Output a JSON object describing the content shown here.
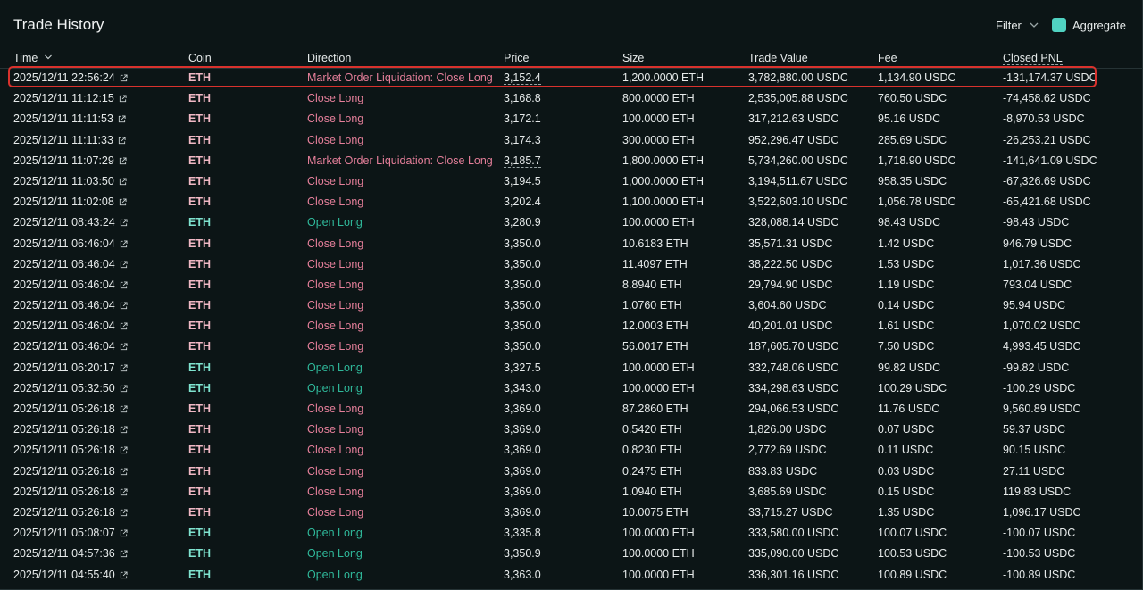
{
  "title": "Trade History",
  "controls": {
    "filter_label": "Filter",
    "aggregate_label": "Aggregate",
    "aggregate_checked": true
  },
  "columns": {
    "time": "Time",
    "coin": "Coin",
    "direction": "Direction",
    "price": "Price",
    "size": "Size",
    "trade_value": "Trade Value",
    "fee": "Fee",
    "closed_pnl": "Closed PNL"
  },
  "colors": {
    "close_long": "#e57f9a",
    "open_long": "#2fb89a",
    "coin_close": "#f0b8c4",
    "coin_open": "#7fe3cf",
    "highlight": "#d9322d"
  },
  "rows": [
    {
      "time": "2025/12/11 22:56:24",
      "coin": "ETH",
      "direction": "Market Order Liquidation: Close Long",
      "side": "close",
      "price": "3,152.4",
      "price_underlined": true,
      "size": "1,200.0000 ETH",
      "trade_value": "3,782,880.00 USDC",
      "fee": "1,134.90 USDC",
      "closed_pnl": "-131,174.37 USDC",
      "highlighted": true
    },
    {
      "time": "2025/12/11 11:12:15",
      "coin": "ETH",
      "direction": "Close Long",
      "side": "close",
      "price": "3,168.8",
      "size": "800.0000 ETH",
      "trade_value": "2,535,005.88 USDC",
      "fee": "760.50 USDC",
      "closed_pnl": "-74,458.62 USDC"
    },
    {
      "time": "2025/12/11 11:11:53",
      "coin": "ETH",
      "direction": "Close Long",
      "side": "close",
      "price": "3,172.1",
      "size": "100.0000 ETH",
      "trade_value": "317,212.63 USDC",
      "fee": "95.16 USDC",
      "closed_pnl": "-8,970.53 USDC"
    },
    {
      "time": "2025/12/11 11:11:33",
      "coin": "ETH",
      "direction": "Close Long",
      "side": "close",
      "price": "3,174.3",
      "size": "300.0000 ETH",
      "trade_value": "952,296.47 USDC",
      "fee": "285.69 USDC",
      "closed_pnl": "-26,253.21 USDC"
    },
    {
      "time": "2025/12/11 11:07:29",
      "coin": "ETH",
      "direction": "Market Order Liquidation: Close Long",
      "side": "close",
      "price": "3,185.7",
      "price_underlined": true,
      "size": "1,800.0000 ETH",
      "trade_value": "5,734,260.00 USDC",
      "fee": "1,718.90 USDC",
      "closed_pnl": "-141,641.09 USDC"
    },
    {
      "time": "2025/12/11 11:03:50",
      "coin": "ETH",
      "direction": "Close Long",
      "side": "close",
      "price": "3,194.5",
      "size": "1,000.0000 ETH",
      "trade_value": "3,194,511.67 USDC",
      "fee": "958.35 USDC",
      "closed_pnl": "-67,326.69 USDC"
    },
    {
      "time": "2025/12/11 11:02:08",
      "coin": "ETH",
      "direction": "Close Long",
      "side": "close",
      "price": "3,202.4",
      "size": "1,100.0000 ETH",
      "trade_value": "3,522,603.10 USDC",
      "fee": "1,056.78 USDC",
      "closed_pnl": "-65,421.68 USDC"
    },
    {
      "time": "2025/12/11 08:43:24",
      "coin": "ETH",
      "direction": "Open Long",
      "side": "open",
      "price": "3,280.9",
      "size": "100.0000 ETH",
      "trade_value": "328,088.14 USDC",
      "fee": "98.43 USDC",
      "closed_pnl": "-98.43 USDC"
    },
    {
      "time": "2025/12/11 06:46:04",
      "coin": "ETH",
      "direction": "Close Long",
      "side": "close",
      "price": "3,350.0",
      "size": "10.6183 ETH",
      "trade_value": "35,571.31 USDC",
      "fee": "1.42 USDC",
      "closed_pnl": "946.79 USDC"
    },
    {
      "time": "2025/12/11 06:46:04",
      "coin": "ETH",
      "direction": "Close Long",
      "side": "close",
      "price": "3,350.0",
      "size": "11.4097 ETH",
      "trade_value": "38,222.50 USDC",
      "fee": "1.53 USDC",
      "closed_pnl": "1,017.36 USDC"
    },
    {
      "time": "2025/12/11 06:46:04",
      "coin": "ETH",
      "direction": "Close Long",
      "side": "close",
      "price": "3,350.0",
      "size": "8.8940 ETH",
      "trade_value": "29,794.90 USDC",
      "fee": "1.19 USDC",
      "closed_pnl": "793.04 USDC"
    },
    {
      "time": "2025/12/11 06:46:04",
      "coin": "ETH",
      "direction": "Close Long",
      "side": "close",
      "price": "3,350.0",
      "size": "1.0760 ETH",
      "trade_value": "3,604.60 USDC",
      "fee": "0.14 USDC",
      "closed_pnl": "95.94 USDC"
    },
    {
      "time": "2025/12/11 06:46:04",
      "coin": "ETH",
      "direction": "Close Long",
      "side": "close",
      "price": "3,350.0",
      "size": "12.0003 ETH",
      "trade_value": "40,201.01 USDC",
      "fee": "1.61 USDC",
      "closed_pnl": "1,070.02 USDC"
    },
    {
      "time": "2025/12/11 06:46:04",
      "coin": "ETH",
      "direction": "Close Long",
      "side": "close",
      "price": "3,350.0",
      "size": "56.0017 ETH",
      "trade_value": "187,605.70 USDC",
      "fee": "7.50 USDC",
      "closed_pnl": "4,993.45 USDC"
    },
    {
      "time": "2025/12/11 06:20:17",
      "coin": "ETH",
      "direction": "Open Long",
      "side": "open",
      "price": "3,327.5",
      "size": "100.0000 ETH",
      "trade_value": "332,748.06 USDC",
      "fee": "99.82 USDC",
      "closed_pnl": "-99.82 USDC"
    },
    {
      "time": "2025/12/11 05:32:50",
      "coin": "ETH",
      "direction": "Open Long",
      "side": "open",
      "price": "3,343.0",
      "size": "100.0000 ETH",
      "trade_value": "334,298.63 USDC",
      "fee": "100.29 USDC",
      "closed_pnl": "-100.29 USDC"
    },
    {
      "time": "2025/12/11 05:26:18",
      "coin": "ETH",
      "direction": "Close Long",
      "side": "close",
      "price": "3,369.0",
      "size": "87.2860 ETH",
      "trade_value": "294,066.53 USDC",
      "fee": "11.76 USDC",
      "closed_pnl": "9,560.89 USDC"
    },
    {
      "time": "2025/12/11 05:26:18",
      "coin": "ETH",
      "direction": "Close Long",
      "side": "close",
      "price": "3,369.0",
      "size": "0.5420 ETH",
      "trade_value": "1,826.00 USDC",
      "fee": "0.07 USDC",
      "closed_pnl": "59.37 USDC"
    },
    {
      "time": "2025/12/11 05:26:18",
      "coin": "ETH",
      "direction": "Close Long",
      "side": "close",
      "price": "3,369.0",
      "size": "0.8230 ETH",
      "trade_value": "2,772.69 USDC",
      "fee": "0.11 USDC",
      "closed_pnl": "90.15 USDC"
    },
    {
      "time": "2025/12/11 05:26:18",
      "coin": "ETH",
      "direction": "Close Long",
      "side": "close",
      "price": "3,369.0",
      "size": "0.2475 ETH",
      "trade_value": "833.83 USDC",
      "fee": "0.03 USDC",
      "closed_pnl": "27.11 USDC"
    },
    {
      "time": "2025/12/11 05:26:18",
      "coin": "ETH",
      "direction": "Close Long",
      "side": "close",
      "price": "3,369.0",
      "size": "1.0940 ETH",
      "trade_value": "3,685.69 USDC",
      "fee": "0.15 USDC",
      "closed_pnl": "119.83 USDC"
    },
    {
      "time": "2025/12/11 05:26:18",
      "coin": "ETH",
      "direction": "Close Long",
      "side": "close",
      "price": "3,369.0",
      "size": "10.0075 ETH",
      "trade_value": "33,715.27 USDC",
      "fee": "1.35 USDC",
      "closed_pnl": "1,096.17 USDC"
    },
    {
      "time": "2025/12/11 05:08:07",
      "coin": "ETH",
      "direction": "Open Long",
      "side": "open",
      "price": "3,335.8",
      "size": "100.0000 ETH",
      "trade_value": "333,580.00 USDC",
      "fee": "100.07 USDC",
      "closed_pnl": "-100.07 USDC"
    },
    {
      "time": "2025/12/11 04:57:36",
      "coin": "ETH",
      "direction": "Open Long",
      "side": "open",
      "price": "3,350.9",
      "size": "100.0000 ETH",
      "trade_value": "335,090.00 USDC",
      "fee": "100.53 USDC",
      "closed_pnl": "-100.53 USDC"
    },
    {
      "time": "2025/12/11 04:55:40",
      "coin": "ETH",
      "direction": "Open Long",
      "side": "open",
      "price": "3,363.0",
      "size": "100.0000 ETH",
      "trade_value": "336,301.16 USDC",
      "fee": "100.89 USDC",
      "closed_pnl": "-100.89 USDC"
    }
  ]
}
